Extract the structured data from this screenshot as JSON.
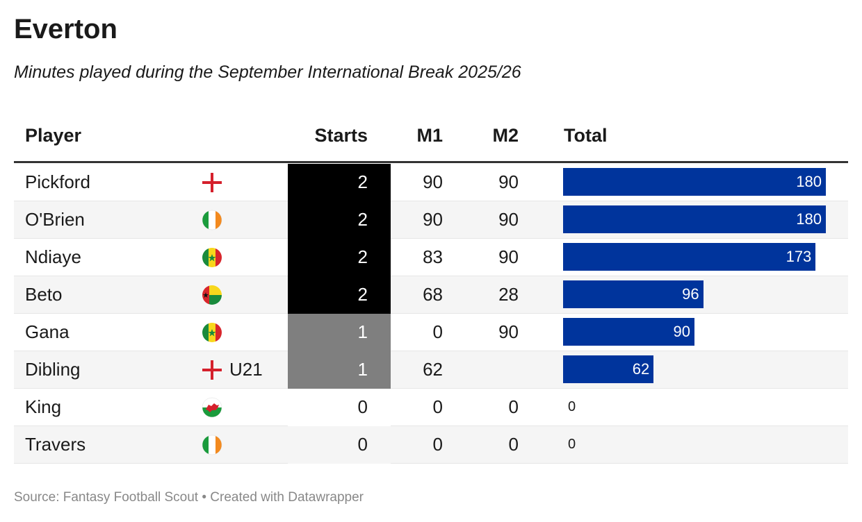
{
  "title": "Everton",
  "subtitle": "Minutes played during the September International Break 2025/26",
  "table": {
    "header": [
      "Player",
      "Starts",
      "M1",
      "M2",
      "Total"
    ],
    "rows": [
      {
        "player": "Pickford",
        "starts": 2,
        "m1": 90,
        "m2": 90,
        "total": 180
      },
      {
        "player": "O'Brien",
        "starts": 2,
        "m1": 90,
        "m2": 90,
        "total": 180
      },
      {
        "player": "Ndiaye",
        "starts": 2,
        "m1": 83,
        "m2": 90,
        "total": 173
      },
      {
        "player": "Beto",
        "starts": 2,
        "m1": 68,
        "m2": 28,
        "total": 96
      },
      {
        "player": "Gana",
        "starts": 1,
        "m1": 0,
        "m2": 90,
        "total": 90
      },
      {
        "player": "Dibling",
        "note": "U21",
        "starts": 1,
        "m1": 62,
        "m2": null,
        "total": 62
      },
      {
        "player": "King",
        "starts": 0,
        "m1": 0,
        "m2": 0,
        "total": 0
      },
      {
        "player": "Travers",
        "starts": 0,
        "m1": 0,
        "m2": 0,
        "total": 0
      }
    ]
  },
  "source": "Source: Fantasy Football Scout • Created with Datawrapper"
}
